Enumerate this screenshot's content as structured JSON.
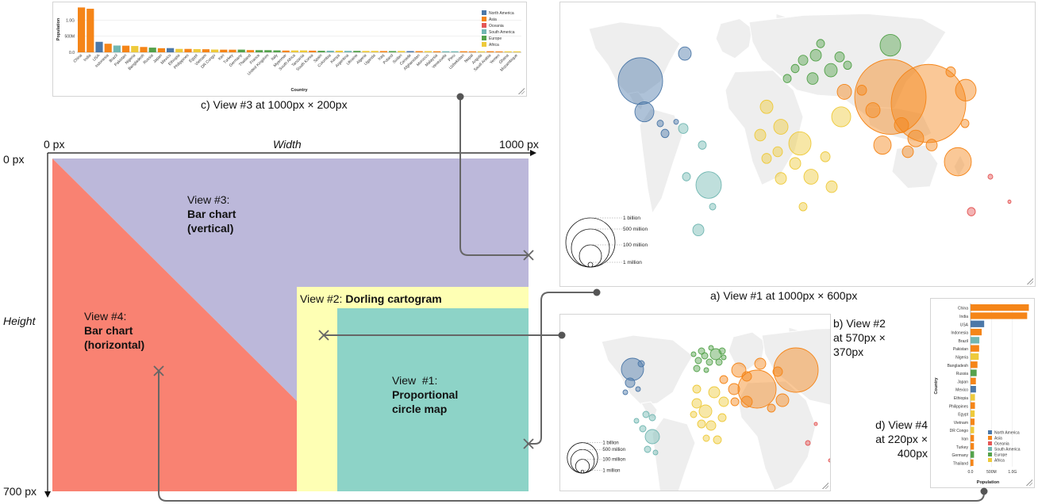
{
  "captions": {
    "view3": "c) View #3 at 1000px × 200px",
    "view1": "a) View #1 at 1000px × 600px",
    "view2_lines": [
      "b) View #2",
      "at 570px ×",
      "370px"
    ],
    "view4_lines": [
      "d) View #4",
      "at 220px ×",
      "400px"
    ]
  },
  "diagram": {
    "x_start": "0 px",
    "x_end": "1000 px",
    "width_label": "Width",
    "y_start": "0 px",
    "y_end": "700 px",
    "height_label": "Height",
    "regions": {
      "view3": {
        "line1": "View #3:",
        "line2": "Bar chart",
        "line3": "(vertical)",
        "color": "#bcb8da"
      },
      "view4": {
        "line1": "View #4:",
        "line2": "Bar chart",
        "line3": "(horizontal)",
        "color": "#f98272"
      },
      "view2": {
        "prefix": "View #2:",
        "title": "Dorling cartogram",
        "color": "#feffb4"
      },
      "view1": {
        "line1": "View  #1:",
        "line2": "Proportional",
        "line3": "circle map",
        "color": "#8dd3c7"
      }
    }
  },
  "legend_regions": {
    "north_america": {
      "label": "North America",
      "color": "#4c78a8"
    },
    "asia": {
      "label": "Asia",
      "color": "#f58518"
    },
    "oceania": {
      "label": "Oceania",
      "color": "#e45756"
    },
    "south_america": {
      "label": "South America",
      "color": "#72b7b2"
    },
    "europe": {
      "label": "Europe",
      "color": "#54a24b"
    },
    "africa": {
      "label": "Africa",
      "color": "#eeca3b"
    }
  },
  "size_legend": [
    "1 million",
    "100 million",
    "500 million",
    "1 billion"
  ],
  "chart_data": [
    {
      "type": "bar",
      "xlabel": "Country",
      "ylabel": "Population",
      "yticks": [
        "0.0",
        "500M",
        "1.0G"
      ],
      "categories": [
        "China",
        "India",
        "USA",
        "Indonesia",
        "Brazil",
        "Pakistan",
        "Nigeria",
        "Bangladesh",
        "Russia",
        "Japan",
        "Mexico",
        "Ethiopia",
        "Philippines",
        "Egypt",
        "Vietnam",
        "DR Congo",
        "Iran",
        "Turkey",
        "Germany",
        "Thailand",
        "France",
        "United Kingdom",
        "Italy",
        "Myanmar",
        "South Africa",
        "Tanzania",
        "South Korea",
        "Spain",
        "Colombia",
        "Kenya",
        "Argentina",
        "Ukraine",
        "Algeria",
        "Uganda",
        "Iraq",
        "Poland",
        "Sudan",
        "Canada",
        "Afghanistan",
        "Morocco",
        "Malaysia",
        "Venezuela",
        "Peru",
        "Uzbekistan",
        "Nepal",
        "Angola",
        "Saudi Arabia",
        "Yemen",
        "Ghana",
        "Mozambique"
      ],
      "regions": [
        "Asia",
        "Asia",
        "North America",
        "Asia",
        "South America",
        "Asia",
        "Africa",
        "Asia",
        "Europe",
        "Asia",
        "North America",
        "Africa",
        "Asia",
        "Africa",
        "Asia",
        "Africa",
        "Asia",
        "Asia",
        "Europe",
        "Asia",
        "Europe",
        "Europe",
        "Europe",
        "Asia",
        "Africa",
        "Africa",
        "Asia",
        "Europe",
        "South America",
        "Africa",
        "South America",
        "Europe",
        "Africa",
        "Africa",
        "Asia",
        "Europe",
        "Africa",
        "North America",
        "Asia",
        "Africa",
        "Asia",
        "South America",
        "South America",
        "Asia",
        "Asia",
        "Africa",
        "Asia",
        "Asia",
        "Africa",
        "Africa"
      ],
      "values": [
        1390,
        1350,
        325,
        265,
        210,
        205,
        195,
        165,
        145,
        127,
        130,
        105,
        105,
        98,
        95,
        85,
        82,
        81,
        83,
        69,
        67,
        66,
        60,
        54,
        57,
        58,
        51,
        47,
        49,
        50,
        44,
        44,
        42,
        43,
        39,
        38,
        41,
        37,
        36,
        36,
        32,
        32,
        32,
        32,
        29,
        30,
        33,
        28,
        29,
        29
      ]
    },
    {
      "type": "bar",
      "orientation": "horizontal",
      "xlabel": "Population",
      "ylabel": "Country",
      "xticks": [
        "0.0",
        "500M",
        "1.0G"
      ],
      "categories": [
        "China",
        "India",
        "USA",
        "Indonesia",
        "Brazil",
        "Pakistan",
        "Nigeria",
        "Bangladesh",
        "Russia",
        "Japan",
        "Mexico",
        "Ethiopia",
        "Philippines",
        "Egypt",
        "Vietnam",
        "DR Congo",
        "Iran",
        "Turkey",
        "Germany",
        "Thailand"
      ],
      "regions": [
        "Asia",
        "Asia",
        "North America",
        "Asia",
        "South America",
        "Asia",
        "Africa",
        "Asia",
        "Europe",
        "Asia",
        "North America",
        "Africa",
        "Asia",
        "Africa",
        "Asia",
        "Africa",
        "Asia",
        "Asia",
        "Europe",
        "Asia"
      ],
      "values": [
        1390,
        1350,
        325,
        265,
        210,
        205,
        195,
        165,
        145,
        127,
        130,
        105,
        105,
        98,
        95,
        85,
        82,
        81,
        83,
        69
      ]
    }
  ]
}
